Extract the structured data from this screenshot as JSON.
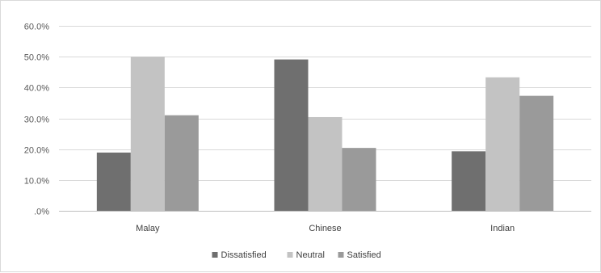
{
  "chart_data": {
    "type": "bar",
    "title": "",
    "xlabel": "",
    "ylabel": "",
    "categories": [
      "Malay",
      "Chinese",
      "Indian"
    ],
    "series": [
      {
        "name": "Dissatisfied",
        "values": [
          18.9,
          49.1,
          19.3
        ],
        "color": "#6f6f6f"
      },
      {
        "name": "Neutral",
        "values": [
          50.0,
          30.4,
          43.3
        ],
        "color": "#c3c3c3"
      },
      {
        "name": "Satisfied",
        "values": [
          31.0,
          20.4,
          37.3
        ],
        "color": "#9a9a9a"
      }
    ],
    "ylim": [
      0,
      60
    ],
    "yticks": [
      0,
      10,
      20,
      30,
      40,
      50,
      60
    ],
    "ytick_labels": [
      ".0%",
      "10.0%",
      "20.0%",
      "30.0%",
      "40.0%",
      "50.0%",
      "60.0%"
    ],
    "grid": true,
    "legend_position": "bottom"
  }
}
